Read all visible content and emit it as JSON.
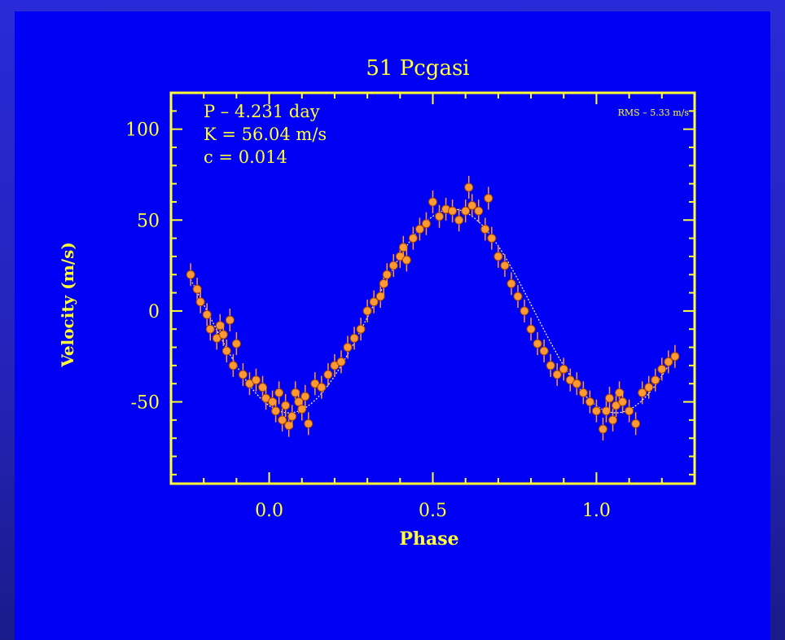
{
  "chart_data": {
    "type": "scatter",
    "title": "51 Pcgasi",
    "xlabel": "Phase",
    "ylabel": "Velocity (m/s)",
    "xlim": [
      -0.3,
      1.3
    ],
    "ylim": [
      -95,
      120
    ],
    "xticks": [
      "0.0",
      "0.5",
      "1.0"
    ],
    "xtick_values": [
      0.0,
      0.5,
      1.0
    ],
    "yticks": [
      "100",
      "50",
      "0",
      "-50"
    ],
    "ytick_values": [
      100,
      50,
      0,
      -50
    ],
    "annotations": {
      "period": "P – 4.231 day",
      "amplitude": "K = 56.04 m/s",
      "eccentricity": "c = 0.014",
      "rms": "RMS – 5.33 m/s"
    },
    "colors": {
      "background": "#0000f5",
      "axes": "#ffff33",
      "points": "#ff9933",
      "fit_curve": "#ffffff"
    },
    "fit_model": {
      "K": 56.04,
      "peak_phase": 0.56
    },
    "series": [
      {
        "x": [
          -0.24,
          -0.22,
          -0.21,
          -0.19,
          -0.18,
          -0.16,
          -0.15,
          -0.14,
          -0.13,
          -0.12,
          -0.11,
          -0.1,
          -0.08,
          -0.06,
          -0.04,
          -0.02,
          -0.01,
          0.01,
          0.02,
          0.03,
          0.04,
          0.05,
          0.06,
          0.07,
          0.08,
          0.09,
          0.1,
          0.11,
          0.12,
          0.14,
          0.16,
          0.18,
          0.2,
          0.22,
          0.24,
          0.26,
          0.28,
          0.3,
          0.32,
          0.34,
          0.35,
          0.36,
          0.38,
          0.4,
          0.41,
          0.42,
          0.44,
          0.46,
          0.48,
          0.5,
          0.52,
          0.54,
          0.56,
          0.58,
          0.6,
          0.61,
          0.62,
          0.64,
          0.66,
          0.67,
          0.68,
          0.7,
          0.72,
          0.74,
          0.76,
          0.78,
          0.8,
          0.82,
          0.84,
          0.86,
          0.88,
          0.9,
          0.92,
          0.94,
          0.96,
          0.98,
          1.0,
          1.02,
          1.03,
          1.04,
          1.05,
          1.06,
          1.07,
          1.08,
          1.1,
          1.12,
          1.14,
          1.16,
          1.18,
          1.2,
          1.22,
          1.24
        ],
        "y": [
          20,
          12,
          5,
          -2,
          -10,
          -15,
          -8,
          -13,
          -22,
          -5,
          -30,
          -18,
          -35,
          -40,
          -38,
          -42,
          -48,
          -50,
          -55,
          -45,
          -60,
          -52,
          -63,
          -58,
          -45,
          -50,
          -54,
          -47,
          -62,
          -40,
          -42,
          -35,
          -30,
          -28,
          -20,
          -15,
          -10,
          0,
          5,
          8,
          15,
          20,
          25,
          30,
          35,
          28,
          40,
          45,
          48,
          60,
          52,
          56,
          55,
          50,
          55,
          68,
          58,
          55,
          45,
          62,
          40,
          30,
          25,
          15,
          8,
          0,
          -10,
          -18,
          -22,
          -30,
          -35,
          -32,
          -38,
          -40,
          -45,
          -50,
          -55,
          -65,
          -55,
          -48,
          -60,
          -52,
          -45,
          -50,
          -55,
          -62,
          -45,
          -42,
          -38,
          -32,
          -28,
          -25
        ]
      }
    ]
  }
}
